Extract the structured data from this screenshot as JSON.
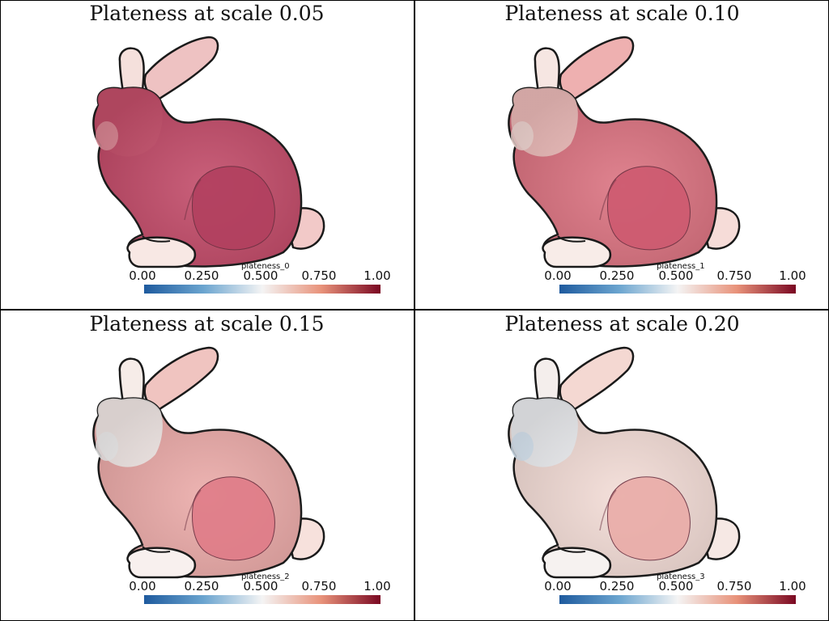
{
  "panels": [
    {
      "title": "Plateness at scale 0.05",
      "scalar": "plateness_0",
      "body_color": "#c24a68",
      "head_color": "#c6506c",
      "tail_color": "#f2c9c8",
      "ear_near": "#f5e0dc",
      "ear_far": "#eec2c2",
      "nose_color": "#e2909c",
      "foot_color": "#f8e8e4",
      "haunch_color": "#b2405f"
    },
    {
      "title": "Plateness at scale 0.10",
      "scalar": "plateness_1",
      "body_color": "#db7280",
      "head_color": "#f0c4c0",
      "tail_color": "#f6dcd8",
      "ear_near": "#f6e6e2",
      "ear_far": "#eeb0b0",
      "nose_color": "#f5ddd8",
      "foot_color": "#f8ece8",
      "haunch_color": "#ce5a70"
    },
    {
      "title": "Plateness at scale 0.15",
      "scalar": "plateness_2",
      "body_color": "#ebaaa8",
      "head_color": "#f6f2f0",
      "tail_color": "#f7e1dc",
      "ear_near": "#f6ece8",
      "ear_far": "#f0c4c0",
      "nose_color": "#f3f3f3",
      "foot_color": "#f8f0ee",
      "haunch_color": "#e07c88"
    },
    {
      "title": "Plateness at scale 0.20",
      "scalar": "plateness_3",
      "body_color": "#f3dcd6",
      "head_color": "#eef2f6",
      "tail_color": "#f6e8e4",
      "ear_near": "#f4eeec",
      "ear_far": "#f4d8d2",
      "nose_color": "#d8e8f4",
      "foot_color": "#f6f2f0",
      "haunch_color": "#eaaca8"
    }
  ],
  "colorbar": {
    "ticks": [
      "0.00",
      "0.250",
      "0.500",
      "0.750",
      "1.00"
    ],
    "colormap": [
      "#1e5a9e",
      "#6aa4cf",
      "#f4f4f4",
      "#e8927a",
      "#7a0822"
    ]
  }
}
